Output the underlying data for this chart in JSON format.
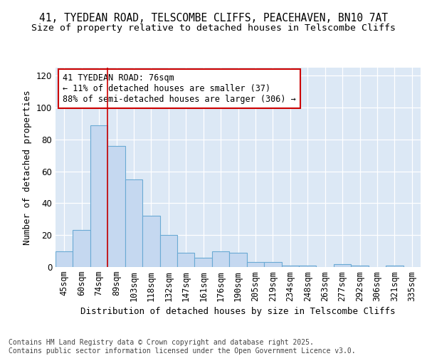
{
  "title1": "41, TYEDEAN ROAD, TELSCOMBE CLIFFS, PEACEHAVEN, BN10 7AT",
  "title2": "Size of property relative to detached houses in Telscombe Cliffs",
  "xlabel": "Distribution of detached houses by size in Telscombe Cliffs",
  "ylabel": "Number of detached properties",
  "categories": [
    "45sqm",
    "60sqm",
    "74sqm",
    "89sqm",
    "103sqm",
    "118sqm",
    "132sqm",
    "147sqm",
    "161sqm",
    "176sqm",
    "190sqm",
    "205sqm",
    "219sqm",
    "234sqm",
    "248sqm",
    "263sqm",
    "277sqm",
    "292sqm",
    "306sqm",
    "321sqm",
    "335sqm"
  ],
  "values": [
    10,
    23,
    89,
    76,
    55,
    32,
    20,
    9,
    6,
    10,
    9,
    3,
    3,
    1,
    1,
    0,
    2,
    1,
    0,
    1,
    0
  ],
  "bar_color": "#c5d8f0",
  "bar_edge_color": "#6aaad4",
  "redline_x": 2.5,
  "annotation_text": "41 TYEDEAN ROAD: 76sqm\n← 11% of detached houses are smaller (37)\n88% of semi-detached houses are larger (306) →",
  "annotation_box_color": "#ffffff",
  "annotation_box_edge": "#cc0000",
  "ylim": [
    0,
    125
  ],
  "yticks": [
    0,
    20,
    40,
    60,
    80,
    100,
    120
  ],
  "background_color": "#dce8f5",
  "footer_text": "Contains HM Land Registry data © Crown copyright and database right 2025.\nContains public sector information licensed under the Open Government Licence v3.0.",
  "title_fontsize": 10.5,
  "subtitle_fontsize": 9.5,
  "axis_label_fontsize": 9,
  "tick_fontsize": 8.5,
  "ann_fontsize": 8.5,
  "footer_fontsize": 7
}
